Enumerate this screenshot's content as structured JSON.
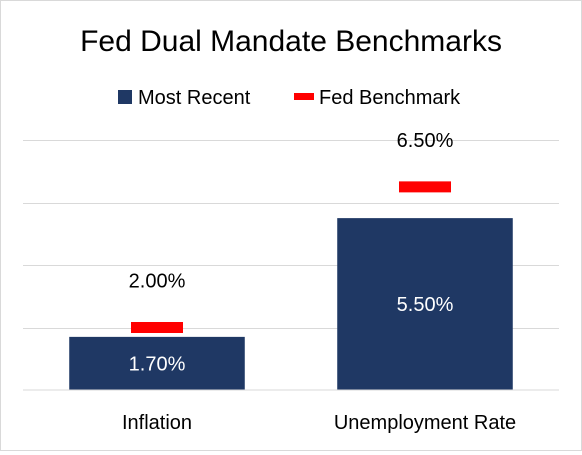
{
  "chart_data": {
    "type": "bar",
    "title": "Fed Dual Mandate Benchmarks",
    "categories": [
      "Inflation",
      "Unemployment Rate"
    ],
    "series": [
      {
        "name": "Most Recent",
        "kind": "bar",
        "values": [
          1.7,
          5.5
        ],
        "labels": [
          "1.70%",
          "5.50%"
        ],
        "color": "#1f3864"
      },
      {
        "name": "Fed Benchmark",
        "kind": "marker",
        "values": [
          2.0,
          6.5
        ],
        "labels": [
          "2.00%",
          "6.50%"
        ],
        "color": "#ff0000"
      }
    ],
    "xlabel": "",
    "ylabel": "",
    "ylim": [
      0,
      8
    ],
    "grid": true,
    "legend_position": "top-center"
  }
}
